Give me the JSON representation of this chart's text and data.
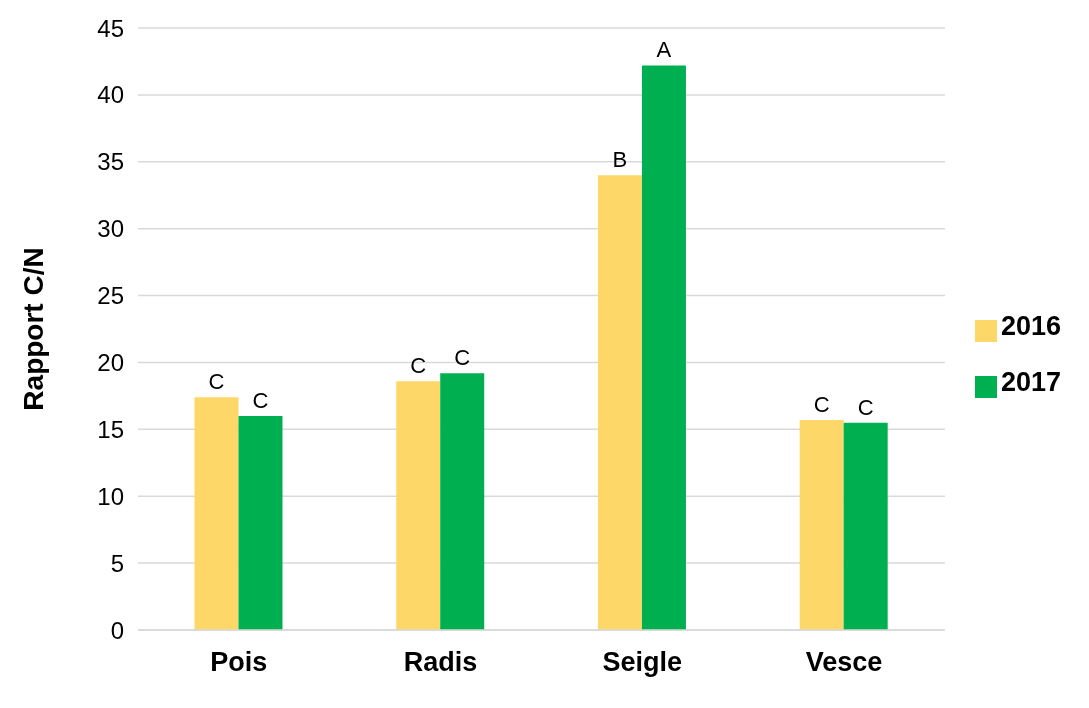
{
  "chart_data": {
    "type": "bar",
    "ylabel": "Rapport C/N",
    "categories": [
      "Pois",
      "Radis",
      "Seigle",
      "Vesce"
    ],
    "series": [
      {
        "name": "2016",
        "color": "#fdd868",
        "values": [
          17.4,
          18.6,
          34.0,
          15.7
        ],
        "value_labels": [
          "C",
          "C",
          "B",
          "C"
        ]
      },
      {
        "name": "2017",
        "color": "#00b050",
        "values": [
          16.0,
          19.2,
          42.2,
          15.5
        ],
        "value_labels": [
          "C",
          "C",
          "A",
          "C"
        ]
      }
    ],
    "ylim": [
      0,
      45
    ],
    "yticks": [
      0,
      5,
      10,
      15,
      20,
      25,
      30,
      35,
      40,
      45
    ],
    "grid": "y",
    "legend": "right"
  }
}
